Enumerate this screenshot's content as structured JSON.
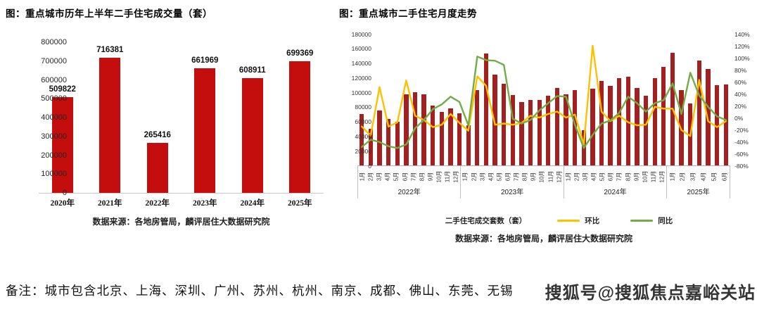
{
  "note": {
    "text": "备注：城市包含北京、上海、深圳、广州、苏州、杭州、南京、成都、佛山、东莞、无锡"
  },
  "watermark": {
    "text": "搜狐号@搜狐焦点嘉峪关站"
  },
  "chart_data": [
    {
      "type": "bar",
      "title": "图：重点城市历年上半年二手住宅成交量（套）",
      "categories": [
        "2020年",
        "2021年",
        "2022年",
        "2023年",
        "2024年",
        "2025年"
      ],
      "values": [
        509822,
        716381,
        265416,
        661969,
        608911,
        699369
      ],
      "ylim": [
        0,
        800000
      ],
      "ytick_step": 100000,
      "bar_color": "#c40d0d",
      "grid": false,
      "source": "数据来源：各地房管局，麟评居住大数据研究院"
    },
    {
      "type": "combo_bar_line",
      "title": "图：重点城市二手住宅月度走势",
      "years": [
        {
          "label": "2022年",
          "months": 12
        },
        {
          "label": "2023年",
          "months": 12
        },
        {
          "label": "2024年",
          "months": 12
        },
        {
          "label": "2025年",
          "months": 6
        }
      ],
      "months": [
        "1月",
        "2月",
        "3月",
        "4月",
        "5月",
        "6月",
        "7月",
        "8月",
        "9月",
        "10月",
        "11月",
        "12月"
      ],
      "left_ylim": [
        0,
        180000
      ],
      "left_ytick_step": 20000,
      "right_ylim": [
        -80,
        140
      ],
      "right_ytick_step": 20,
      "right_unit": "%",
      "grid": false,
      "legend_position": "bottom",
      "series": [
        {
          "name": "二手住宅成交套数（套）",
          "type": "bar",
          "axis": "left",
          "color": "#a32020",
          "values": [
            70000,
            50000,
            75000,
            64000,
            60000,
            97000,
            100000,
            97000,
            82000,
            73000,
            78000,
            71000,
            55000,
            103000,
            153000,
            124000,
            112000,
            96000,
            87000,
            90000,
            90000,
            95000,
            106000,
            97000,
            103000,
            48000,
            105000,
            116000,
            109000,
            119000,
            121000,
            106000,
            95000,
            119000,
            135000,
            154000,
            103000,
            85000,
            143000,
            132000,
            110000,
            111000
          ]
        },
        {
          "name": "环比",
          "type": "line",
          "axis": "right",
          "color": "#ffc000",
          "values": [
            -15,
            -30,
            51,
            -15,
            -8,
            62,
            3,
            -4,
            -16,
            -12,
            6,
            -9,
            -22,
            69,
            53,
            -12,
            -10,
            -12,
            -9,
            3,
            0,
            6,
            10,
            0,
            5,
            -45,
            120,
            10,
            -6,
            3,
            -8,
            -13,
            -12,
            18,
            15,
            15,
            -21,
            -31,
            63,
            -6,
            -16,
            -6
          ]
        },
        {
          "name": "同比",
          "type": "line",
          "axis": "right",
          "color": "#70ad47",
          "values": [
            -49,
            -37,
            -41,
            -48,
            -51,
            -45,
            -18,
            -4,
            14,
            22,
            35,
            26,
            -13,
            102,
            96,
            95,
            88,
            -2,
            -10,
            -4,
            12,
            24,
            36,
            35,
            -12,
            -51,
            -29,
            -10,
            -5,
            8,
            35,
            24,
            10,
            24,
            29,
            57,
            6,
            75,
            37,
            18,
            2,
            -4
          ]
        }
      ],
      "source": "数据来源：各地房管局，麟评居住大数据研究院"
    }
  ]
}
